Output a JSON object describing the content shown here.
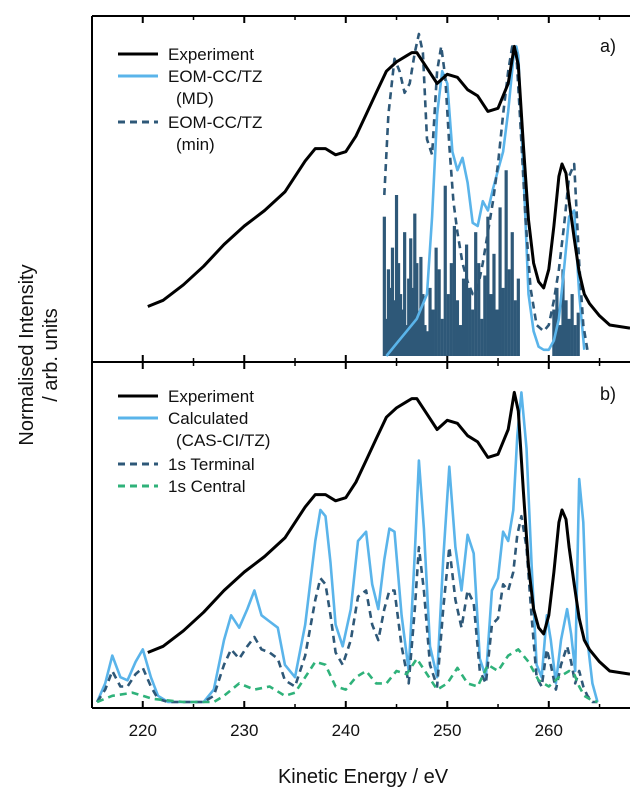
{
  "figure": {
    "ylabel_line1": "Normalised Intensity",
    "ylabel_line2": "/ arb. units",
    "xlabel": "Kinetic Energy / eV"
  },
  "colors": {
    "experiment": "#000000",
    "calculated": "#5ab4ea",
    "dashed_dark": "#2e5878",
    "central": "#2fb27a",
    "stick": "#2e5878"
  },
  "chart_data": [
    {
      "type": "line",
      "panel_label": "a)",
      "xlim": [
        215,
        268
      ],
      "ylim": [
        0,
        1.04
      ],
      "xticks": [
        220,
        230,
        240,
        250,
        260
      ],
      "tick_labels_shown": false,
      "legend_position": "top-left",
      "legend": [
        {
          "line1": "Experiment",
          "line2": "",
          "style": "solid",
          "color_key": "experiment"
        },
        {
          "line1": "EOM-CC/TZ",
          "line2": "(MD)",
          "style": "solid",
          "color_key": "calculated"
        },
        {
          "line1": "EOM-CC/TZ",
          "line2": "(min)",
          "style": "dashed",
          "color_key": "dashed_dark"
        }
      ],
      "series": [
        {
          "name": "Experiment",
          "style": "solid",
          "color_key": "experiment",
          "x": [
            220.5,
            222,
            224,
            226,
            228,
            230,
            232,
            234,
            236,
            237,
            238,
            239,
            240,
            241,
            242,
            243,
            244,
            245,
            246,
            246.5,
            247,
            248,
            249,
            250,
            251,
            252,
            253,
            254,
            255,
            256,
            256.6,
            257,
            257.5,
            258,
            258.5,
            259,
            259.5,
            260,
            260.5,
            261,
            261.3,
            261.7,
            262,
            262.5,
            263,
            263.5,
            264,
            265,
            266,
            268
          ],
          "y": [
            0.16,
            0.18,
            0.23,
            0.29,
            0.36,
            0.42,
            0.47,
            0.53,
            0.63,
            0.67,
            0.67,
            0.65,
            0.66,
            0.71,
            0.78,
            0.85,
            0.92,
            0.95,
            0.97,
            0.98,
            0.98,
            0.93,
            0.88,
            0.91,
            0.9,
            0.86,
            0.84,
            0.79,
            0.8,
            0.88,
            1.0,
            0.94,
            0.68,
            0.44,
            0.3,
            0.24,
            0.22,
            0.28,
            0.42,
            0.58,
            0.62,
            0.59,
            0.5,
            0.38,
            0.27,
            0.2,
            0.17,
            0.13,
            0.1,
            0.09
          ]
        },
        {
          "name": "EOM-CC/TZ (MD)",
          "style": "solid",
          "color_key": "calculated",
          "x": [
            244,
            245,
            246,
            247,
            248,
            248.5,
            249,
            249.5,
            250,
            250.5,
            251,
            251.5,
            252,
            252.5,
            253,
            253.5,
            254,
            254.5,
            255,
            255.5,
            256,
            256.5,
            256.8,
            257,
            257.5,
            258,
            258.5,
            259,
            259.5,
            260,
            260.5,
            261,
            261.5,
            262,
            262.5,
            263,
            263.5
          ],
          "y": [
            0,
            0.04,
            0.08,
            0.12,
            0.2,
            0.45,
            0.78,
            0.92,
            0.88,
            0.66,
            0.6,
            0.64,
            0.56,
            0.43,
            0.42,
            0.5,
            0.47,
            0.54,
            0.6,
            0.66,
            0.79,
            0.96,
            1.0,
            0.97,
            0.6,
            0.2,
            0.08,
            0.03,
            0.02,
            0.02,
            0.05,
            0.12,
            0.28,
            0.45,
            0.47,
            0.2,
            0.02
          ]
        },
        {
          "name": "EOM-CC/TZ (min)",
          "style": "dashed",
          "color_key": "dashed_dark",
          "x": [
            243.8,
            244.2,
            244.8,
            245.3,
            245.8,
            246.3,
            246.8,
            247.2,
            247.6,
            248,
            248.5,
            249,
            249.4,
            249.8,
            250.2,
            250.6,
            251,
            251.5,
            252,
            252.5,
            253,
            253.5,
            254,
            254.5,
            255,
            255.5,
            256,
            256.4,
            256.8,
            257.2,
            257.7,
            258.2,
            258.8,
            259.5,
            260,
            260.5,
            261,
            261.5,
            262,
            262.5,
            263,
            263.4,
            263.8
          ],
          "y": [
            0.52,
            0.78,
            0.96,
            0.92,
            0.85,
            0.88,
            0.98,
            1.04,
            0.98,
            0.7,
            0.65,
            0.92,
            1.0,
            0.9,
            0.68,
            0.5,
            0.4,
            0.3,
            0.24,
            0.2,
            0.22,
            0.3,
            0.4,
            0.5,
            0.62,
            0.78,
            0.92,
            1.0,
            0.98,
            0.75,
            0.45,
            0.22,
            0.1,
            0.08,
            0.1,
            0.18,
            0.28,
            0.42,
            0.58,
            0.62,
            0.3,
            0.1,
            0.02
          ]
        }
      ],
      "sticks": {
        "name": "EOM-CC/TZ (min)",
        "color_key": "stick",
        "x": [
          243.8,
          244,
          244.2,
          244.4,
          244.6,
          244.8,
          245,
          245.2,
          245.4,
          245.6,
          245.8,
          246,
          246.2,
          246.4,
          246.6,
          246.8,
          247,
          247.2,
          247.4,
          247.6,
          247.8,
          248,
          248.3,
          248.6,
          248.9,
          249.2,
          249.5,
          249.8,
          250.1,
          250.4,
          250.7,
          251,
          251.3,
          251.6,
          251.9,
          252.2,
          252.5,
          252.8,
          253.1,
          253.4,
          253.7,
          254,
          254.3,
          254.6,
          254.9,
          255.2,
          255.5,
          255.8,
          256.1,
          256.4,
          256.7,
          257,
          260.5,
          260.8,
          261.1,
          261.4,
          261.7,
          262,
          262.3,
          262.6,
          262.9
        ],
        "y": [
          0.45,
          0.12,
          0.28,
          0.22,
          0.35,
          0.18,
          0.52,
          0.3,
          0.2,
          0.15,
          0.4,
          0.1,
          0.25,
          0.38,
          0.22,
          0.46,
          0.3,
          0.14,
          0.32,
          0.2,
          0.1,
          0.08,
          0.22,
          0.15,
          0.35,
          0.28,
          0.12,
          0.55,
          0.2,
          0.3,
          0.42,
          0.18,
          0.1,
          0.25,
          0.36,
          0.22,
          0.15,
          0.4,
          0.3,
          0.12,
          0.26,
          0.45,
          0.2,
          0.33,
          0.15,
          0.48,
          0.22,
          0.6,
          0.28,
          0.4,
          0.18,
          0.25,
          0.15,
          0.22,
          0.1,
          0.28,
          0.18,
          0.12,
          0.2,
          0.1,
          0.14
        ]
      }
    },
    {
      "type": "line",
      "panel_label": "b)",
      "xlim": [
        215,
        268
      ],
      "ylim": [
        0,
        1.04
      ],
      "xticks": [
        220,
        230,
        240,
        250,
        260
      ],
      "xtick_labels": [
        "220",
        "230",
        "240",
        "250",
        "260"
      ],
      "legend_position": "top-left",
      "legend": [
        {
          "line1": "Experiment",
          "line2": "",
          "style": "solid",
          "color_key": "experiment"
        },
        {
          "line1": "Calculated",
          "line2": "(CAS-CI/TZ)",
          "style": "solid",
          "color_key": "calculated"
        },
        {
          "line1": "1s Terminal",
          "line2": "",
          "style": "dashed",
          "color_key": "dashed_dark"
        },
        {
          "line1": "1s Central",
          "line2": "",
          "style": "dashed",
          "color_key": "central"
        }
      ],
      "series": [
        {
          "name": "Experiment",
          "style": "solid",
          "color_key": "experiment",
          "x": [
            220.5,
            222,
            224,
            226,
            228,
            230,
            232,
            234,
            236,
            237,
            238,
            239,
            240,
            241,
            242,
            243,
            244,
            245,
            246,
            246.5,
            247,
            248,
            249,
            250,
            251,
            252,
            253,
            254,
            255,
            256,
            256.6,
            257,
            257.5,
            258,
            258.5,
            259,
            259.5,
            260,
            260.5,
            261,
            261.3,
            261.7,
            262,
            262.5,
            263,
            263.5,
            264,
            265,
            266,
            268
          ],
          "y": [
            0.16,
            0.18,
            0.23,
            0.29,
            0.36,
            0.42,
            0.47,
            0.53,
            0.63,
            0.67,
            0.67,
            0.65,
            0.66,
            0.71,
            0.78,
            0.85,
            0.92,
            0.95,
            0.97,
            0.98,
            0.98,
            0.93,
            0.88,
            0.91,
            0.9,
            0.86,
            0.84,
            0.79,
            0.8,
            0.88,
            1.0,
            0.94,
            0.68,
            0.44,
            0.3,
            0.24,
            0.22,
            0.28,
            0.42,
            0.58,
            0.62,
            0.59,
            0.5,
            0.38,
            0.27,
            0.2,
            0.17,
            0.13,
            0.1,
            0.09
          ]
        },
        {
          "name": "Calculated",
          "style": "solid",
          "color_key": "calculated",
          "x": [
            215.5,
            216.3,
            217,
            217.8,
            218.5,
            219.3,
            220,
            220.8,
            221.5,
            222.5,
            224,
            226,
            227,
            228,
            228.7,
            229.5,
            230.3,
            231,
            231.7,
            232.5,
            233.3,
            234,
            235,
            236,
            237,
            237.5,
            238,
            238.5,
            239,
            239.7,
            240.5,
            241.2,
            242,
            242.6,
            243.2,
            243.8,
            244.3,
            244.8,
            245.5,
            246.2,
            246.8,
            247.2,
            247.7,
            248.3,
            249,
            249.6,
            250.2,
            250.8,
            251.4,
            252,
            252.6,
            253.2,
            253.8,
            254.4,
            255,
            255.5,
            256,
            256.5,
            256.9,
            257.3,
            257.8,
            258.3,
            258.8,
            259.3,
            259.8,
            260.2,
            260.7,
            261.2,
            261.8,
            262.2,
            262.6,
            263,
            263.4,
            263.8,
            264.3,
            264.8
          ],
          "y": [
            0,
            0.06,
            0.15,
            0.08,
            0.07,
            0.13,
            0.17,
            0.08,
            0.02,
            0,
            0,
            0,
            0.04,
            0.2,
            0.28,
            0.24,
            0.3,
            0.36,
            0.28,
            0.26,
            0.24,
            0.12,
            0.08,
            0.25,
            0.52,
            0.62,
            0.6,
            0.45,
            0.25,
            0.18,
            0.3,
            0.52,
            0.55,
            0.38,
            0.3,
            0.46,
            0.56,
            0.55,
            0.28,
            0.1,
            0.48,
            0.78,
            0.56,
            0.18,
            0.08,
            0.46,
            0.76,
            0.5,
            0.36,
            0.54,
            0.48,
            0.14,
            0.08,
            0.36,
            0.4,
            0.55,
            0.52,
            0.62,
            0.86,
            1.0,
            0.82,
            0.45,
            0.12,
            0.08,
            0.28,
            0.2,
            0.06,
            0.2,
            0.3,
            0.22,
            0.1,
            0.72,
            0.58,
            0.2,
            0.06,
            0
          ]
        },
        {
          "name": "1s Terminal",
          "style": "dashed",
          "color_key": "dashed_dark",
          "x": [
            215.5,
            216.3,
            217,
            217.8,
            218.5,
            219.3,
            220,
            220.8,
            221.5,
            222.5,
            224,
            226,
            227,
            228,
            228.7,
            229.5,
            230.3,
            231,
            231.7,
            232.5,
            233.3,
            234,
            235,
            236,
            237,
            237.5,
            238,
            238.5,
            239,
            239.7,
            240.5,
            241.2,
            242,
            242.6,
            243.2,
            243.8,
            244.3,
            244.8,
            245.5,
            246.2,
            246.8,
            247.2,
            247.7,
            248.3,
            249,
            249.6,
            250.2,
            250.8,
            251.4,
            252,
            252.6,
            253.2,
            253.8,
            254.4,
            255,
            255.5,
            256,
            256.5,
            256.9,
            257.3,
            257.8,
            258.3,
            258.8,
            259.3,
            259.8,
            260.2,
            260.7,
            261.2,
            261.8,
            262.2,
            262.6,
            263,
            263.4,
            263.8,
            264.3,
            264.8
          ],
          "y": [
            0,
            0.04,
            0.1,
            0.05,
            0.05,
            0.09,
            0.11,
            0.05,
            0.01,
            0,
            0,
            0,
            0.02,
            0.12,
            0.17,
            0.14,
            0.18,
            0.21,
            0.17,
            0.16,
            0.14,
            0.07,
            0.05,
            0.15,
            0.33,
            0.4,
            0.38,
            0.28,
            0.16,
            0.12,
            0.2,
            0.34,
            0.36,
            0.25,
            0.2,
            0.3,
            0.36,
            0.36,
            0.18,
            0.06,
            0.3,
            0.5,
            0.36,
            0.12,
            0.05,
            0.3,
            0.5,
            0.33,
            0.24,
            0.36,
            0.32,
            0.1,
            0.06,
            0.25,
            0.27,
            0.38,
            0.36,
            0.42,
            0.54,
            0.6,
            0.5,
            0.28,
            0.08,
            0.05,
            0.17,
            0.12,
            0.04,
            0.12,
            0.18,
            0.13,
            0.06,
            0.1,
            0.05,
            0.02,
            0,
            0
          ]
        },
        {
          "name": "1s Central",
          "style": "dashed",
          "color_key": "central",
          "x": [
            215.5,
            217,
            219,
            221,
            224,
            227,
            228,
            229.5,
            231,
            232.5,
            234,
            235,
            236,
            237,
            238,
            239,
            240,
            241,
            242,
            243,
            244,
            245,
            246,
            247,
            248,
            249,
            250,
            251,
            252,
            253,
            254,
            255,
            256,
            257,
            258,
            259,
            260,
            261,
            262,
            262.5,
            263,
            263.5,
            264,
            264.8
          ],
          "y": [
            0,
            0.02,
            0.03,
            0.01,
            0,
            0,
            0.02,
            0.06,
            0.04,
            0.05,
            0.02,
            0.03,
            0.08,
            0.13,
            0.12,
            0.05,
            0.04,
            0.08,
            0.1,
            0.06,
            0.06,
            0.1,
            0.09,
            0.14,
            0.09,
            0.04,
            0.06,
            0.11,
            0.06,
            0.05,
            0.12,
            0.1,
            0.15,
            0.17,
            0.13,
            0.07,
            0.05,
            0.08,
            0.1,
            0.09,
            0.05,
            0.02,
            0.01,
            0
          ]
        }
      ]
    }
  ]
}
